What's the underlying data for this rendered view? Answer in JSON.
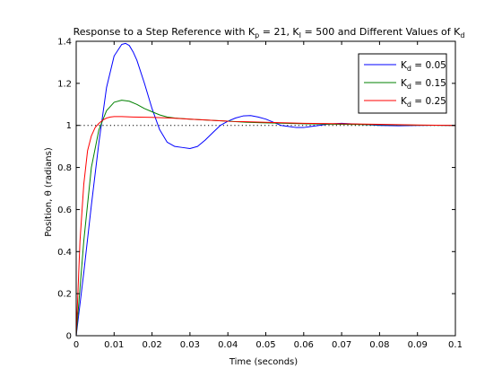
{
  "chart_data": {
    "type": "line",
    "title": {
      "prefix": "Response to a Step Reference with K",
      "sub1": "p",
      "mid1": " = 21, K",
      "sub2": "I",
      "mid2": " = 500 and Different Values of K",
      "sub3": "d"
    },
    "xlabel": "Time (seconds)",
    "ylabel": "Position, θ (radians)",
    "xlim": [
      0,
      0.1
    ],
    "ylim": [
      0,
      1.4
    ],
    "xticks": [
      0,
      0.01,
      0.02,
      0.03,
      0.04,
      0.05,
      0.06,
      0.07,
      0.08,
      0.09,
      0.1
    ],
    "xtick_labels": [
      "0",
      "0.01",
      "0.02",
      "0.03",
      "0.04",
      "0.05",
      "0.06",
      "0.07",
      "0.08",
      "0.09",
      "0.1"
    ],
    "yticks": [
      0,
      0.2,
      0.4,
      0.6,
      0.8,
      1,
      1.2,
      1.4
    ],
    "ytick_labels": [
      "0",
      "0.2",
      "0.4",
      "0.6",
      "0.8",
      "1",
      "1.2",
      "1.4"
    ],
    "reference_line": {
      "y": 1,
      "style": "dotted",
      "color": "#000000"
    },
    "grid": false,
    "legend_position": "top-right",
    "series": [
      {
        "legend_main": "K",
        "legend_sub": "d",
        "legend_value": " = 0.05",
        "color": "#0000ff",
        "x": [
          0,
          0.002,
          0.004,
          0.006,
          0.008,
          0.01,
          0.012,
          0.013,
          0.014,
          0.015,
          0.016,
          0.018,
          0.02,
          0.022,
          0.024,
          0.026,
          0.028,
          0.03,
          0.032,
          0.034,
          0.036,
          0.038,
          0.04,
          0.042,
          0.044,
          0.046,
          0.048,
          0.05,
          0.052,
          0.054,
          0.056,
          0.058,
          0.06,
          0.062,
          0.064,
          0.066,
          0.068,
          0.07,
          0.075,
          0.08,
          0.085,
          0.09,
          0.095,
          0.1
        ],
        "y": [
          0,
          0.3,
          0.62,
          0.92,
          1.18,
          1.33,
          1.385,
          1.39,
          1.38,
          1.35,
          1.31,
          1.2,
          1.08,
          0.98,
          0.92,
          0.9,
          0.895,
          0.89,
          0.9,
          0.93,
          0.965,
          1.0,
          1.02,
          1.035,
          1.045,
          1.047,
          1.04,
          1.03,
          1.015,
          1.0,
          0.995,
          0.99,
          0.99,
          0.995,
          1.0,
          1.005,
          1.008,
          1.01,
          1.005,
          1.0,
          0.998,
          1.0,
          1.001,
          1.0
        ]
      },
      {
        "legend_main": "K",
        "legend_sub": "d",
        "legend_value": " = 0.15",
        "color": "#008000",
        "x": [
          0,
          0.002,
          0.004,
          0.006,
          0.008,
          0.01,
          0.012,
          0.014,
          0.016,
          0.018,
          0.02,
          0.022,
          0.024,
          0.026,
          0.03,
          0.035,
          0.04,
          0.045,
          0.05,
          0.055,
          0.06,
          0.065,
          0.07,
          0.08,
          0.09,
          0.1
        ],
        "y": [
          0,
          0.45,
          0.8,
          0.98,
          1.07,
          1.11,
          1.12,
          1.115,
          1.1,
          1.08,
          1.065,
          1.05,
          1.04,
          1.035,
          1.03,
          1.025,
          1.02,
          1.015,
          1.012,
          1.01,
          1.008,
          1.006,
          1.005,
          1.003,
          1.001,
          1.0
        ]
      },
      {
        "legend_main": "K",
        "legend_sub": "d",
        "legend_value": " = 0.25",
        "color": "#ff0000",
        "x": [
          0,
          0.001,
          0.002,
          0.003,
          0.004,
          0.005,
          0.006,
          0.007,
          0.008,
          0.009,
          0.01,
          0.012,
          0.015,
          0.02,
          0.025,
          0.03,
          0.035,
          0.04,
          0.05,
          0.06,
          0.07,
          0.08,
          0.09,
          0.1
        ],
        "y": [
          0,
          0.45,
          0.72,
          0.88,
          0.95,
          0.99,
          1.01,
          1.025,
          1.035,
          1.04,
          1.042,
          1.042,
          1.04,
          1.038,
          1.035,
          1.03,
          1.025,
          1.02,
          1.015,
          1.01,
          1.008,
          1.005,
          1.002,
          1.0
        ]
      }
    ]
  }
}
